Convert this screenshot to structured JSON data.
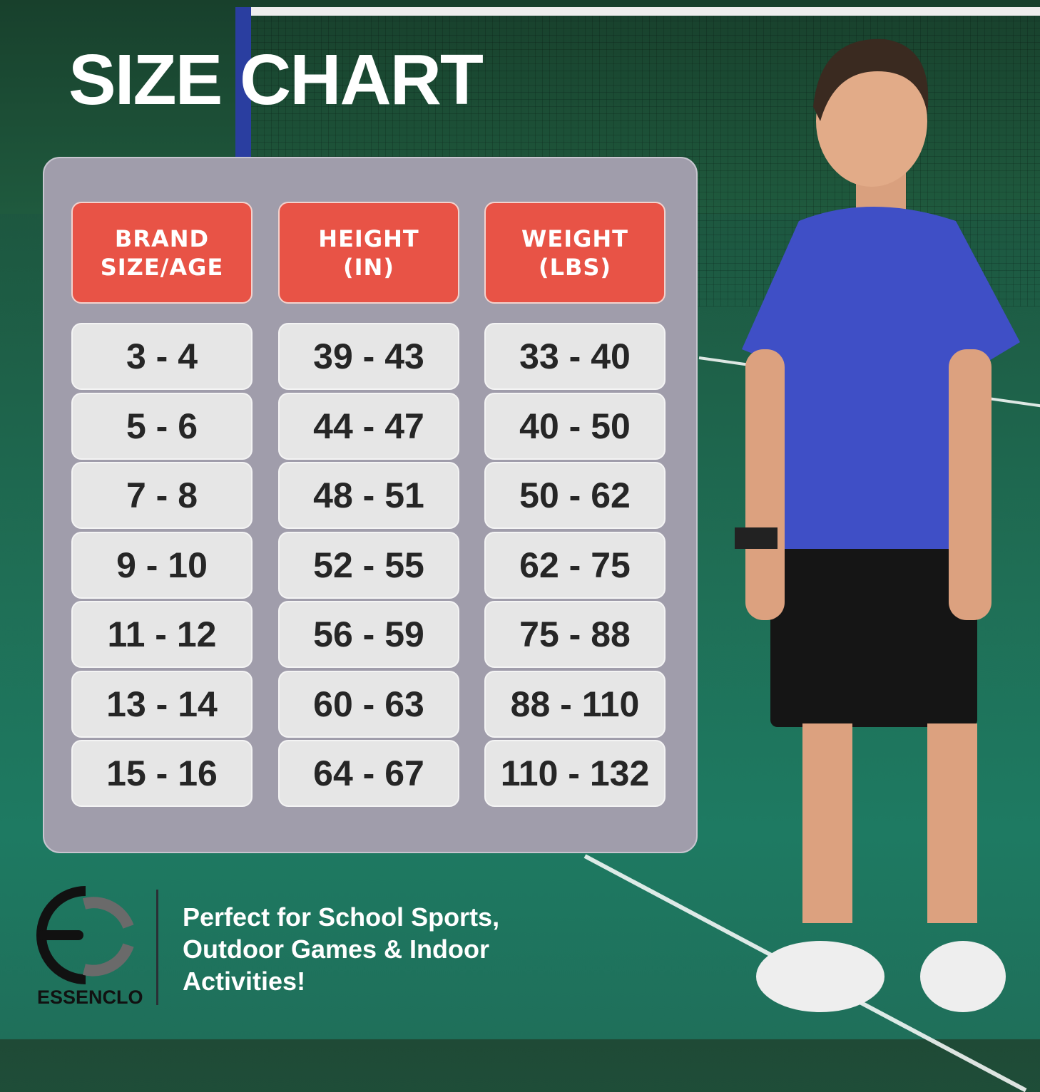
{
  "title": "SIZE CHART",
  "table": {
    "headers": [
      "BRAND\nSIZE/AGE",
      "HEIGHT\n(IN)",
      "WEIGHT\n(LBS)"
    ],
    "rows": [
      [
        "3 - 4",
        "39 - 43",
        "33 - 40"
      ],
      [
        "5 - 6",
        "44 - 47",
        "40 - 50"
      ],
      [
        "7 - 8",
        "48 - 51",
        "50 - 62"
      ],
      [
        "9 - 10",
        "52 - 55",
        "62 - 75"
      ],
      [
        "11 - 12",
        "56 - 59",
        "75 - 88"
      ],
      [
        "13 - 14",
        "60 - 63",
        "88 - 110"
      ],
      [
        "15 - 16",
        "64 - 67",
        "110 - 132"
      ]
    ]
  },
  "brand": {
    "name": "ESSENCLO"
  },
  "tagline": "Perfect for School Sports, Outdoor Games & Indoor Activities!",
  "colors": {
    "header": "#e85346",
    "cell": "#e6e6e6",
    "panel": "#a09dab",
    "background": "#1f6e55"
  }
}
